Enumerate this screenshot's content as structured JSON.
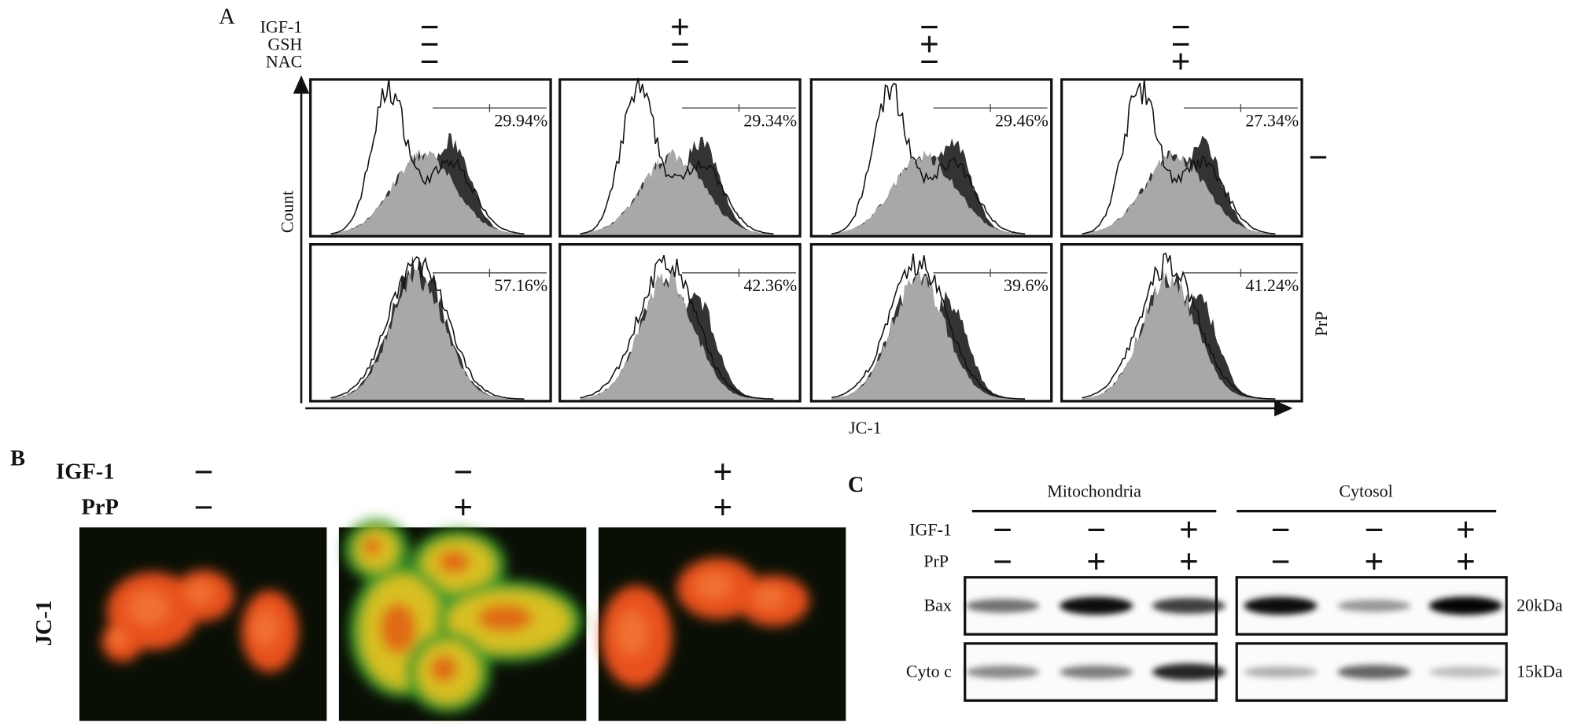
{
  "panel_a": {
    "label": "A",
    "conditions": [
      {
        "name": "IGF-1",
        "signs": [
          "−",
          "+",
          "−",
          "−"
        ]
      },
      {
        "name": "GSH",
        "signs": [
          "−",
          "−",
          "+",
          "−"
        ]
      },
      {
        "name": "NAC",
        "signs": [
          "−",
          "−",
          "−",
          "+"
        ]
      }
    ],
    "percentages": [
      [
        "29.94%",
        "29.34%",
        "29.46%",
        "27.34%"
      ],
      [
        "57.16%",
        "42.36%",
        "39.6%",
        "41.24%"
      ]
    ],
    "row_labels": [
      "−",
      "PrP"
    ],
    "y_label": "Count",
    "x_label": "JC-1"
  },
  "panel_b": {
    "label": "B",
    "conditions": [
      {
        "name": "IGF-1",
        "signs": [
          "−",
          "−",
          "+"
        ]
      },
      {
        "name": "PrP",
        "signs": [
          "−",
          "+",
          "+"
        ]
      }
    ],
    "y_label": "JC-1"
  },
  "panel_c": {
    "label": "C",
    "groups": [
      "Mitochondria",
      "Cytosol"
    ],
    "conditions": [
      {
        "name": "IGF-1",
        "signs": [
          "−",
          "−",
          "+",
          "−",
          "−",
          "+"
        ]
      },
      {
        "name": "PrP",
        "signs": [
          "−",
          "+",
          "+",
          "−",
          "+",
          "+"
        ]
      }
    ],
    "rows": [
      {
        "name": "Bax",
        "size": "20kDa"
      },
      {
        "name": "Cyto c",
        "size": "15kDa"
      }
    ]
  }
}
